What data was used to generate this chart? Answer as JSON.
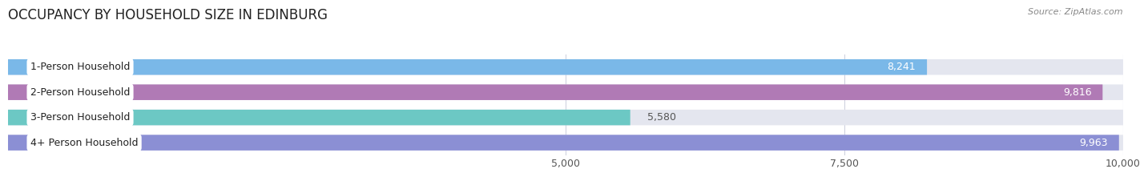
{
  "title": "OCCUPANCY BY HOUSEHOLD SIZE IN EDINBURG",
  "source": "Source: ZipAtlas.com",
  "categories": [
    "1-Person Household",
    "2-Person Household",
    "3-Person Household",
    "4+ Person Household"
  ],
  "values": [
    8241,
    9816,
    5580,
    9963
  ],
  "bar_colors": [
    "#7ab8e8",
    "#b07ab5",
    "#6cc8c4",
    "#8b8fd4"
  ],
  "bg_bar_color": "#e4e6ef",
  "fig_bg_color": "#ffffff",
  "ax_bg_color": "#ffffff",
  "xmin": 0,
  "xmax": 10000,
  "xticks": [
    5000,
    7500,
    10000
  ],
  "xtick_labels": [
    "5,000",
    "7,500",
    "10,000"
  ],
  "label_white_color": "#ffffff",
  "label_dark_color": "#555555",
  "bar_height": 0.62,
  "title_fontsize": 12,
  "tick_fontsize": 9,
  "bar_label_fontsize": 9,
  "category_fontsize": 9,
  "grid_color": "#d0d3e0",
  "pill_bg": "#ffffff",
  "value_threshold": 6500
}
